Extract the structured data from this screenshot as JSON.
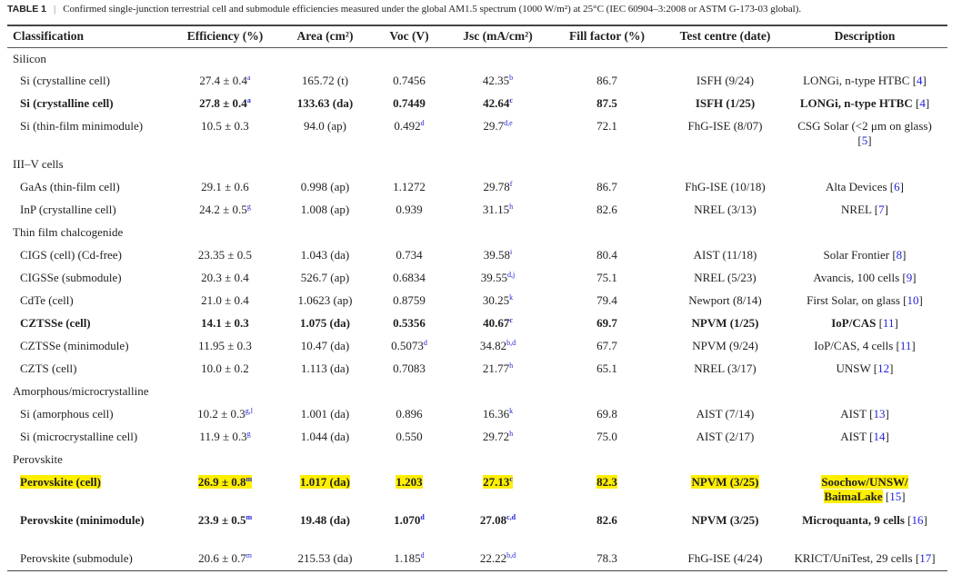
{
  "caption": {
    "label": "TABLE 1",
    "text": "Confirmed single-junction terrestrial cell and submodule efficiencies measured under the global AM1.5 spectrum (1000 W/m²) at 25°C (IEC 60904–3:2008 or ASTM G-173-03 global)."
  },
  "headers": [
    "Classification",
    "Efficiency (%)",
    "Area (cm²)",
    "Voc (V)",
    "Jsc (mA/cm²)",
    "Fill factor (%)",
    "Test centre (date)",
    "Description"
  ],
  "highlight_color": "#ffef00",
  "link_color": "#2222dd",
  "rows": [
    {
      "group": "Silicon"
    },
    {
      "cells": [
        [
          "Si (crystalline cell)"
        ],
        [
          "27.4 ± 0.4",
          "a"
        ],
        [
          "165.72 (t)"
        ],
        [
          "0.7456"
        ],
        [
          "42.35",
          "b"
        ],
        [
          "86.7"
        ],
        [
          "ISFH (9/24)"
        ],
        [
          "LONGi, n-type HTBC",
          "",
          "4"
        ]
      ]
    },
    {
      "bold": true,
      "cells": [
        [
          "Si (crystalline cell)"
        ],
        [
          "27.8 ± 0.4",
          "a"
        ],
        [
          "133.63 (da)"
        ],
        [
          "0.7449"
        ],
        [
          "42.64",
          "c"
        ],
        [
          "87.5"
        ],
        [
          "ISFH (1/25)"
        ],
        [
          "LONGi, n-type HTBC",
          "",
          "4"
        ]
      ]
    },
    {
      "tall": true,
      "cells": [
        [
          "Si (thin-film minimodule)"
        ],
        [
          "10.5 ± 0.3"
        ],
        [
          "94.0 (ap)"
        ],
        [
          "0.492",
          "d"
        ],
        [
          "29.7",
          "d,e"
        ],
        [
          "72.1"
        ],
        [
          "FhG-ISE (8/07)"
        ],
        [
          "CSG Solar (<2 μm on glass)",
          "",
          "5"
        ]
      ]
    },
    {
      "group": "III–V cells"
    },
    {
      "cells": [
        [
          "GaAs (thin-film cell)"
        ],
        [
          "29.1 ± 0.6"
        ],
        [
          "0.998 (ap)"
        ],
        [
          "1.1272"
        ],
        [
          "29.78",
          "f"
        ],
        [
          "86.7"
        ],
        [
          "FhG-ISE (10/18)"
        ],
        [
          "Alta Devices",
          "",
          "6"
        ]
      ]
    },
    {
      "cells": [
        [
          "InP (crystalline cell)"
        ],
        [
          "24.2 ± 0.5",
          "g"
        ],
        [
          "1.008 (ap)"
        ],
        [
          "0.939"
        ],
        [
          "31.15",
          "h"
        ],
        [
          "82.6"
        ],
        [
          "NREL (3/13)"
        ],
        [
          "NREL",
          "",
          "7"
        ]
      ]
    },
    {
      "group": "Thin film chalcogenide"
    },
    {
      "cells": [
        [
          "CIGS (cell) (Cd-free)"
        ],
        [
          "23.35 ± 0.5"
        ],
        [
          "1.043 (da)"
        ],
        [
          "0.734"
        ],
        [
          "39.58",
          "i"
        ],
        [
          "80.4"
        ],
        [
          "AIST (11/18)"
        ],
        [
          "Solar Frontier",
          "",
          "8"
        ]
      ]
    },
    {
      "cells": [
        [
          "CIGSSe (submodule)"
        ],
        [
          "20.3 ± 0.4"
        ],
        [
          "526.7 (ap)"
        ],
        [
          "0.6834"
        ],
        [
          "39.55",
          "d,j"
        ],
        [
          "75.1"
        ],
        [
          "NREL (5/23)"
        ],
        [
          "Avancis, 100 cells",
          "",
          "9"
        ]
      ]
    },
    {
      "cells": [
        [
          "CdTe (cell)"
        ],
        [
          "21.0 ± 0.4"
        ],
        [
          "1.0623 (ap)"
        ],
        [
          "0.8759"
        ],
        [
          "30.25",
          "k"
        ],
        [
          "79.4"
        ],
        [
          "Newport (8/14)"
        ],
        [
          "First Solar, on glass",
          "",
          "10"
        ]
      ]
    },
    {
      "bold": true,
      "cells": [
        [
          "CZTSSe (cell)"
        ],
        [
          "14.1 ± 0.3"
        ],
        [
          "1.075 (da)"
        ],
        [
          "0.5356"
        ],
        [
          "40.67",
          "c"
        ],
        [
          "69.7"
        ],
        [
          "NPVM (1/25)"
        ],
        [
          "IoP/CAS",
          "",
          "11"
        ]
      ]
    },
    {
      "cells": [
        [
          "CZTSSe (minimodule)"
        ],
        [
          "11.95 ± 0.3"
        ],
        [
          "10.47 (da)"
        ],
        [
          "0.5073",
          "d"
        ],
        [
          "34.82",
          "b,d"
        ],
        [
          "67.7"
        ],
        [
          "NPVM (9/24)"
        ],
        [
          "IoP/CAS, 4 cells",
          "",
          "11"
        ]
      ]
    },
    {
      "cells": [
        [
          "CZTS (cell)"
        ],
        [
          "10.0 ± 0.2"
        ],
        [
          "1.113 (da)"
        ],
        [
          "0.7083"
        ],
        [
          "21.77",
          "h"
        ],
        [
          "65.1"
        ],
        [
          "NREL (3/17)"
        ],
        [
          "UNSW",
          "",
          "12"
        ]
      ]
    },
    {
      "group": "Amorphous/microcrystalline"
    },
    {
      "cells": [
        [
          "Si (amorphous cell)"
        ],
        [
          "10.2 ± 0.3",
          "g,l"
        ],
        [
          "1.001 (da)"
        ],
        [
          "0.896"
        ],
        [
          "16.36",
          "k"
        ],
        [
          "69.8"
        ],
        [
          "AIST (7/14)"
        ],
        [
          "AIST",
          "",
          "13"
        ]
      ]
    },
    {
      "cells": [
        [
          "Si (microcrystalline cell)"
        ],
        [
          "11.9 ± 0.3",
          "g"
        ],
        [
          "1.044 (da)"
        ],
        [
          "0.550"
        ],
        [
          "29.72",
          "h"
        ],
        [
          "75.0"
        ],
        [
          "AIST (2/17)"
        ],
        [
          "AIST",
          "",
          "14"
        ]
      ]
    },
    {
      "group": "Perovskite"
    },
    {
      "bold": true,
      "tall": true,
      "highlight": true,
      "cells": [
        [
          "Perovskite (cell)"
        ],
        [
          "26.9 ± 0.8",
          "m"
        ],
        [
          "1.017 (da)"
        ],
        [
          "1.203"
        ],
        [
          "27.13",
          "c"
        ],
        [
          "82.3"
        ],
        [
          "NPVM (3/25)"
        ],
        [
          "Soochow/UNSW/ BaimaLake",
          "",
          "15"
        ]
      ]
    },
    {
      "bold": true,
      "tall": true,
      "cells": [
        [
          "Perovskite (minimodule)"
        ],
        [
          "23.9 ± 0.5",
          "m"
        ],
        [
          "19.48 (da)"
        ],
        [
          "1.070",
          "d"
        ],
        [
          "27.08",
          "c,d"
        ],
        [
          "82.6"
        ],
        [
          "NPVM (3/25)"
        ],
        [
          "Microquanta, 9 cells",
          "",
          "16"
        ]
      ]
    },
    {
      "last": true,
      "cells": [
        [
          "Perovskite (submodule)"
        ],
        [
          "20.6 ± 0.7",
          "m"
        ],
        [
          "215.53 (da)"
        ],
        [
          "1.185",
          "d"
        ],
        [
          "22.22",
          "b,d"
        ],
        [
          "78.3"
        ],
        [
          "FhG-ISE (4/24)"
        ],
        [
          "KRICT/UniTest, 29 cells",
          "",
          "17"
        ]
      ]
    }
  ]
}
